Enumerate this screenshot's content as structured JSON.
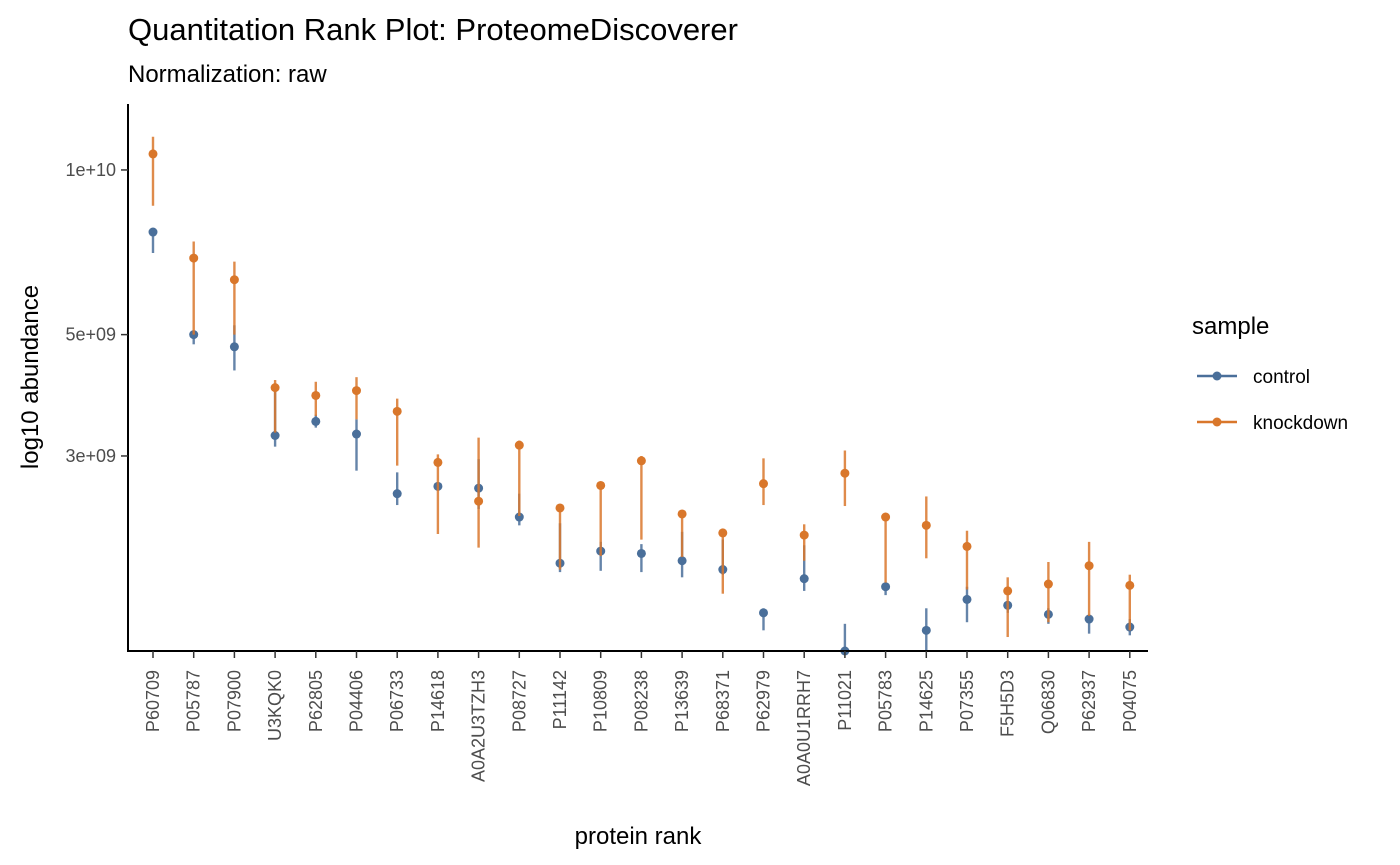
{
  "chart_data": {
    "type": "scatter",
    "title": "Quantitation Rank Plot: ProteomeDiscoverer",
    "subtitle": "Normalization: raw",
    "xlabel": "protein rank",
    "ylabel": "log10 abundance",
    "y_scale": "log10",
    "ylim": [
      1320000000.0,
      13200000000.0
    ],
    "y_ticks": [
      {
        "value": 10000000000.0,
        "label": "1e+10"
      },
      {
        "value": 5000000000.0,
        "label": "5e+09"
      },
      {
        "value": 3000000000.0,
        "label": "3e+09"
      }
    ],
    "grid": false,
    "legend": {
      "title": "sample",
      "position": "right"
    },
    "categories": [
      "P60709",
      "P05787",
      "P07900",
      "U3KQK0",
      "P62805",
      "P04406",
      "P06733",
      "P14618",
      "A0A2U3TZH3",
      "P08727",
      "P11142",
      "P10809",
      "P08238",
      "P13639",
      "P68371",
      "P62979",
      "A0A0U1RRH7",
      "P11021",
      "P05783",
      "P14625",
      "P07355",
      "F5H5D3",
      "Q06830",
      "P62937",
      "P04075"
    ],
    "series": [
      {
        "name": "control",
        "color": "#4a6f9a",
        "values": [
          7700000000.0,
          5000000000.0,
          4750000000.0,
          3270000000.0,
          3470000000.0,
          3290000000.0,
          2560000000.0,
          2640000000.0,
          2620000000.0,
          2320000000.0,
          1910000000.0,
          2010000000.0,
          1990000000.0,
          1930000000.0,
          1860000000.0,
          1550000000.0,
          1790000000.0,
          1320000000.0,
          1730000000.0,
          1440000000.0,
          1640000000.0,
          1600000000.0,
          1540000000.0,
          1510000000.0,
          1460000000.0
        ],
        "lower": [
          7050000000.0,
          4800000000.0,
          4300000000.0,
          3120000000.0,
          3380000000.0,
          2820000000.0,
          2440000000.0,
          2640000000.0,
          2400000000.0,
          2240000000.0,
          1840000000.0,
          1850000000.0,
          1840000000.0,
          1800000000.0,
          1820000000.0,
          1440000000.0,
          1700000000.0,
          1320000000.0,
          1670000000.0,
          1320000000.0,
          1490000000.0,
          1550000000.0,
          1480000000.0,
          1420000000.0,
          1410000000.0
        ],
        "upper": [
          7700000000.0,
          5000000000.0,
          5200000000.0,
          3950000000.0,
          3570000000.0,
          3500000000.0,
          2800000000.0,
          2640000000.0,
          2960000000.0,
          2560000000.0,
          2260000000.0,
          2090000000.0,
          2070000000.0,
          2180000000.0,
          2110000000.0,
          1580000000.0,
          2060000000.0,
          1480000000.0,
          1750000000.0,
          1580000000.0,
          1730000000.0,
          1620000000.0,
          1580000000.0,
          1530000000.0,
          1510000000.0
        ]
      },
      {
        "name": "knockdown",
        "color": "#d9772b",
        "values": [
          10700000000.0,
          6900000000.0,
          6300000000.0,
          4000000000.0,
          3870000000.0,
          3950000000.0,
          3620000000.0,
          2920000000.0,
          2480000000.0,
          3140000000.0,
          2410000000.0,
          2650000000.0,
          2940000000.0,
          2350000000.0,
          2170000000.0,
          2670000000.0,
          2150000000.0,
          2790000000.0,
          2320000000.0,
          2240000000.0,
          2050000000.0,
          1700000000.0,
          1750000000.0,
          1890000000.0,
          1740000000.0
        ],
        "lower": [
          8600000000.0,
          5000000000.0,
          5000000000.0,
          3310000000.0,
          3550000000.0,
          3500000000.0,
          2880000000.0,
          2160000000.0,
          2040000000.0,
          2330000000.0,
          1860000000.0,
          1970000000.0,
          2110000000.0,
          1960000000.0,
          1680000000.0,
          2440000000.0,
          1930000000.0,
          2430000000.0,
          1760000000.0,
          1950000000.0,
          1710000000.0,
          1400000000.0,
          1490000000.0,
          1530000000.0,
          1440000000.0
        ],
        "upper": [
          11500000000.0,
          7400000000.0,
          6800000000.0,
          4130000000.0,
          4100000000.0,
          4180000000.0,
          3820000000.0,
          3020000000.0,
          3240000000.0,
          3200000000.0,
          2420000000.0,
          2660000000.0,
          3000000000.0,
          2360000000.0,
          2180000000.0,
          2970000000.0,
          2250000000.0,
          3070000000.0,
          2330000000.0,
          2530000000.0,
          2190000000.0,
          1800000000.0,
          1920000000.0,
          2090000000.0,
          1820000000.0
        ]
      }
    ]
  }
}
